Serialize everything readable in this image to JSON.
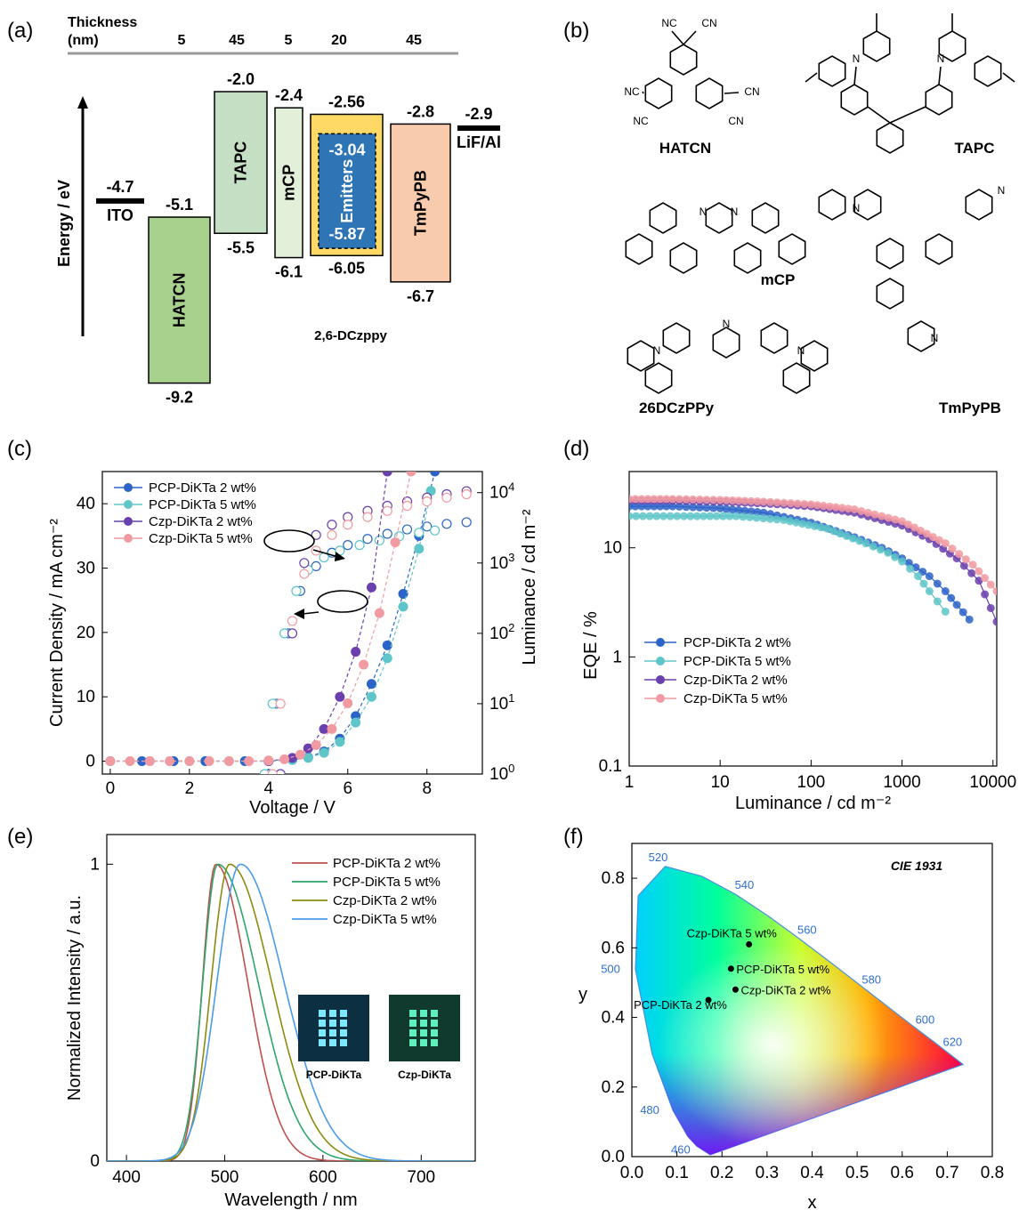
{
  "panels": {
    "a": {
      "label": "(a)",
      "thickness_title": "Thickness",
      "thickness_unit": "(nm)",
      "thickness_values": [
        "5",
        "45",
        "5",
        "20",
        "45"
      ],
      "y_axis_label": "Energy / eV",
      "layers": [
        {
          "name": "ITO",
          "type": "line",
          "level": "-4.7",
          "color": "#000000"
        },
        {
          "name": "HATCN",
          "lumo": "-5.1",
          "homo": "-9.2",
          "color": "#a9d18e"
        },
        {
          "name": "TAPC",
          "lumo": "-2.0",
          "homo": "-5.5",
          "color": "#c4dfc4"
        },
        {
          "name": "mCP",
          "lumo": "-2.4",
          "homo": "-6.1",
          "color": "#e2efd9"
        },
        {
          "name": "2,6-DCzppy",
          "lumo": "-2.56",
          "homo": "-6.05",
          "color": "#ffd966"
        },
        {
          "name": "Emitters",
          "lumo": "-3.04",
          "homo": "-5.87",
          "color": "#2e75b6"
        },
        {
          "name": "TmPyPB",
          "lumo": "-2.8",
          "homo": "-6.7",
          "color": "#f8cbad"
        },
        {
          "name": "LiF/Al",
          "type": "line",
          "level": "-2.9",
          "color": "#000000"
        }
      ]
    },
    "b": {
      "label": "(b)",
      "molecules": [
        "HATCN",
        "TAPC",
        "mCP",
        "TmPyPB",
        "26DCzPPy"
      ],
      "atom_labels": {
        "cn": "CN",
        "nc": "NC",
        "n": "N"
      }
    },
    "c": {
      "label": "(c)"
    },
    "d": {
      "label": "(d)"
    },
    "e": {
      "label": "(e)",
      "photo_labels": [
        "PCP-DiKTa",
        "Czp-DiKTa"
      ]
    },
    "f": {
      "label": "(f)"
    }
  },
  "chart_data": [
    {
      "id": "c",
      "type": "line",
      "xlabel": "Voltage / V",
      "ylabel": "Current Density / mA cm⁻²",
      "y2label": "Luminance / cd m⁻²",
      "xlim": [
        -0.2,
        9.4
      ],
      "ylim": [
        -2,
        45
      ],
      "y2lim_log10": [
        0,
        4.3
      ],
      "x_ticks": [
        "0",
        "2",
        "4",
        "6",
        "8"
      ],
      "y_ticks": [
        "0",
        "10",
        "20",
        "30",
        "40"
      ],
      "y2_ticks_exp": [
        "0",
        "1",
        "2",
        "3",
        "4"
      ],
      "y2_tick_base": "10",
      "legend_position": "top-left",
      "series": [
        {
          "name": "PCP-DiKTa 2 wt%",
          "color": "#2b63c8",
          "current_density": {
            "x": [
              0,
              0.8,
              1.6,
              2.4,
              3.4,
              4.0,
              4.6,
              5.0,
              5.4,
              5.8,
              6.2,
              6.6,
              7.0,
              7.4,
              7.8,
              8.2
            ],
            "y": [
              0,
              0,
              0,
              0,
              0,
              0,
              0.2,
              0.6,
              1.5,
              3.5,
              7,
              12,
              18,
              26,
              35,
              45
            ]
          },
          "luminance": {
            "x": [
              4.0,
              4.2,
              4.5,
              4.8,
              5.2,
              5.6,
              6.0,
              6.5,
              7.0,
              7.5,
              8.0,
              8.5,
              9.0
            ],
            "y": [
              1,
              10,
              100,
              400,
              900,
              1400,
              1800,
              2200,
              2600,
              3000,
              3300,
              3600,
              3800
            ]
          }
        },
        {
          "name": "PCP-DiKTa 5 wt%",
          "color": "#5ec5c8",
          "current_density": {
            "x": [
              0,
              1,
              2,
              3,
              4.0,
              4.6,
              5.0,
              5.4,
              5.8,
              6.2,
              6.6,
              7.0,
              7.4,
              7.8,
              8.1
            ],
            "y": [
              0,
              0,
              0,
              0,
              0,
              0.2,
              0.5,
              1.3,
              3,
              6,
              10,
              16,
              24,
              33,
              42
            ]
          },
          "luminance": {
            "x": [
              3.9,
              4.1,
              4.4,
              4.7,
              5.0,
              5.4,
              5.8,
              6.3,
              6.8,
              7.3,
              7.8,
              8.2
            ],
            "y": [
              1,
              10,
              100,
              400,
              800,
              1200,
              1500,
              1800,
              2100,
              2400,
              2700,
              2900
            ]
          }
        },
        {
          "name": "Czp-DiKTa 2 wt%",
          "color": "#6a3fae",
          "current_density": {
            "x": [
              4.0,
              4.6,
              5.0,
              5.4,
              5.8,
              6.2,
              6.6,
              7.0
            ],
            "y": [
              0,
              0.5,
              2,
              5,
              10,
              17,
              27,
              45
            ]
          },
          "luminance": {
            "x": [
              4.3,
              4.6,
              4.9,
              5.2,
              5.6,
              6.0,
              6.5,
              7.0,
              7.5,
              8.0,
              8.5,
              9.0
            ],
            "y": [
              1,
              100,
              1000,
              2500,
              3500,
              4500,
              5500,
              6500,
              7500,
              8500,
              9500,
              10500
            ]
          }
        },
        {
          "name": "Czp-DiKTa 5 wt%",
          "color": "#f29aa1",
          "current_density": {
            "x": [
              0,
              0.5,
              1.0,
              1.5,
              2.0,
              2.5,
              3.0,
              3.5,
              4.0,
              4.4,
              4.8,
              5.2,
              5.6,
              6.0,
              6.4,
              6.8,
              7.2,
              7.6
            ],
            "y": [
              0,
              0,
              0,
              0,
              0,
              0,
              0,
              0,
              0.1,
              0.3,
              1,
              2.5,
              5,
              9,
              15,
              23,
              34,
              45
            ]
          },
          "luminance": {
            "x": [
              4.1,
              4.3,
              4.6,
              4.9,
              5.2,
              5.6,
              6.0,
              6.5,
              7.0,
              7.5,
              8.0,
              8.5,
              9.0
            ],
            "y": [
              1,
              10,
              150,
              700,
              1500,
              2500,
              3500,
              4500,
              5500,
              6500,
              7500,
              8500,
              9500
            ]
          }
        }
      ]
    },
    {
      "id": "d",
      "type": "scatter",
      "xlabel": "Luminance / cd m⁻²",
      "ylabel": "EQE / %",
      "xscale": "log",
      "yscale": "log",
      "xlim": [
        1,
        11000
      ],
      "ylim": [
        0.1,
        50
      ],
      "x_ticks": [
        "1",
        "10",
        "100",
        "1000",
        "10000"
      ],
      "y_ticks": [
        "0.1",
        "1",
        "10"
      ],
      "legend_position": "center-left",
      "series": [
        {
          "name": "PCP-DiKTa 2 wt%",
          "color": "#2b63c8",
          "x": [
            1,
            3,
            10,
            30,
            100,
            300,
            600,
            1000,
            2000,
            3000,
            4000,
            5500
          ],
          "y": [
            24,
            24,
            23,
            21,
            17,
            12.5,
            10,
            8,
            5.5,
            4,
            3,
            2.2
          ]
        },
        {
          "name": "PCP-DiKTa 5 wt%",
          "color": "#5ec5c8",
          "x": [
            1,
            4,
            15,
            50,
            150,
            400,
            700,
            1000,
            1500,
            2000,
            3000
          ],
          "y": [
            19.5,
            19.5,
            19.5,
            18,
            15,
            11,
            9,
            7.5,
            5.5,
            4,
            2.6
          ]
        },
        {
          "name": "Czp-DiKTa 2 wt%",
          "color": "#6a3fae",
          "x": [
            1,
            3,
            10,
            30,
            100,
            300,
            1000,
            2000,
            4000,
            7000,
            11000
          ],
          "y": [
            27,
            27,
            26.5,
            25.5,
            24,
            21,
            16,
            12,
            8,
            5,
            2.1
          ]
        },
        {
          "name": "Czp-DiKTa 5 wt%",
          "color": "#f29aa1",
          "x": [
            1,
            3,
            10,
            30,
            100,
            300,
            1000,
            3000,
            6000,
            11000
          ],
          "y": [
            28,
            28,
            27.5,
            26.5,
            25,
            22.5,
            17.5,
            11,
            7,
            4
          ]
        }
      ]
    },
    {
      "id": "e",
      "type": "line",
      "xlabel": "Wavelength / nm",
      "ylabel": "Normalized Intensity / a.u.",
      "xlim": [
        380,
        755
      ],
      "ylim": [
        0,
        1.1
      ],
      "x_ticks": [
        "400",
        "500",
        "600",
        "700"
      ],
      "y_ticks": [
        "0",
        "1"
      ],
      "legend_position": "top-right",
      "series": [
        {
          "name": "PCP-DiKTa 2 wt%",
          "color": "#c0504d",
          "peak": 491,
          "fwhm_low": 16,
          "fwhm_high": 38
        },
        {
          "name": "PCP-DiKTa 5 wt%",
          "color": "#2ea56a",
          "peak": 493,
          "fwhm_low": 18,
          "fwhm_high": 48
        },
        {
          "name": "Czp-DiKTa 2 wt%",
          "color": "#8b8b10",
          "peak": 505,
          "fwhm_low": 22,
          "fwhm_high": 50
        },
        {
          "name": "Czp-DiKTa 5 wt%",
          "color": "#4a9be8",
          "peak": 516,
          "fwhm_low": 28,
          "fwhm_high": 52
        }
      ]
    },
    {
      "id": "f",
      "type": "scatter",
      "title": "CIE 1931",
      "xlabel": "x",
      "ylabel": "y",
      "xlim": [
        0.0,
        0.8
      ],
      "ylim": [
        0.0,
        0.9
      ],
      "x_ticks": [
        "0.0",
        "0.1",
        "0.2",
        "0.3",
        "0.4",
        "0.5",
        "0.6",
        "0.7",
        "0.8"
      ],
      "y_ticks": [
        "0.0",
        "0.2",
        "0.4",
        "0.6",
        "0.8"
      ],
      "wavelength_labels": [
        "460",
        "480",
        "500",
        "520",
        "540",
        "560",
        "580",
        "600",
        "620"
      ],
      "points": [
        {
          "name": "Czp-DiKTa 5 wt%",
          "x": 0.26,
          "y": 0.61
        },
        {
          "name": "PCP-DiKTa 5 wt%",
          "x": 0.22,
          "y": 0.54
        },
        {
          "name": "Czp-DiKTa 2 wt%",
          "x": 0.23,
          "y": 0.48
        },
        {
          "name": "PCP-DiKTa 2 wt%",
          "x": 0.17,
          "y": 0.45
        }
      ]
    }
  ]
}
